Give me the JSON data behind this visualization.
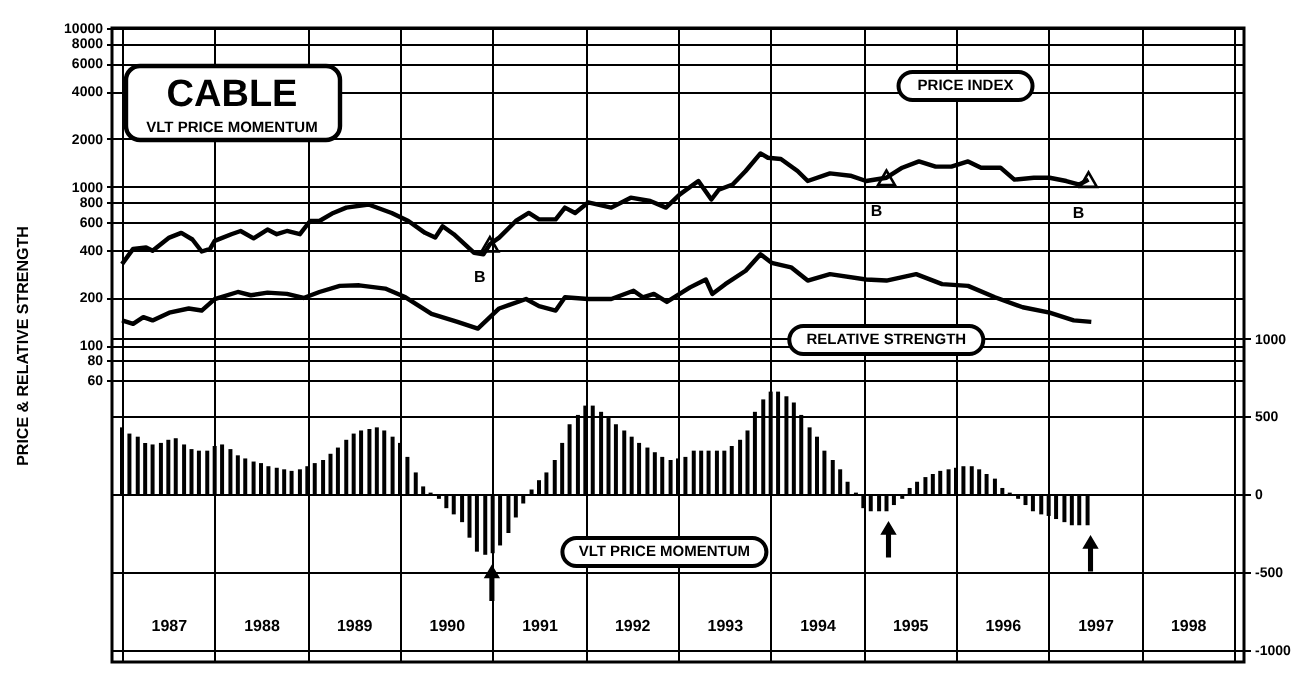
{
  "chart_data": {
    "type": "line",
    "title": "CABLE",
    "subtitle": "VLT PRICE MOMENTUM",
    "ylabel": "PRICE & RELATIVE STRENGTH",
    "xlim": [
      1987,
      1999
    ],
    "xticks": [
      {
        "value": 1987,
        "label": null
      },
      {
        "value": 1987.5,
        "label": "1987"
      },
      {
        "value": 1988,
        "label": null
      },
      {
        "value": 1988.5,
        "label": "1988"
      },
      {
        "value": 1989,
        "label": null
      },
      {
        "value": 1989.5,
        "label": "1989"
      },
      {
        "value": 1990,
        "label": null
      },
      {
        "value": 1990.5,
        "label": "1990"
      },
      {
        "value": 1991,
        "label": null
      },
      {
        "value": 1991.5,
        "label": "1991"
      },
      {
        "value": 1992,
        "label": null
      },
      {
        "value": 1992.5,
        "label": "1992"
      },
      {
        "value": 1993,
        "label": null
      },
      {
        "value": 1993.5,
        "label": "1993"
      },
      {
        "value": 1994,
        "label": null
      },
      {
        "value": 1994.5,
        "label": "1994"
      },
      {
        "value": 1995,
        "label": null
      },
      {
        "value": 1995.5,
        "label": "1995"
      },
      {
        "value": 1996,
        "label": null
      },
      {
        "value": 1996.5,
        "label": "1996"
      },
      {
        "value": 1997,
        "label": null
      },
      {
        "value": 1997.5,
        "label": "1997"
      },
      {
        "value": 1998,
        "label": null
      },
      {
        "value": 1998.5,
        "label": "1998"
      },
      {
        "value": 1999,
        "label": null
      }
    ],
    "ylim": [
      1,
      10000
    ],
    "yticks": [
      60,
      80,
      100,
      200,
      400,
      600,
      800,
      1000,
      2000,
      4000,
      6000,
      8000,
      10000
    ],
    "log": "y",
    "y2lim": [
      -1080,
      3000
    ],
    "y2ticks": [
      -1000,
      -500,
      0,
      500,
      1000
    ],
    "grid": true,
    "legend": false,
    "line_style": "solid",
    "series": [
      {
        "name": "PRICE INDEX",
        "color": "#000000",
        "x": [
          1987,
          1987.12,
          1987.26,
          1987.33,
          1987.51,
          1987.64,
          1987.76,
          1987.86,
          1987.95,
          1988,
          1988.18,
          1988.28,
          1988.42,
          1988.57,
          1988.67,
          1988.78,
          1988.92,
          1989.03,
          1989.13,
          1989.28,
          1989.42,
          1989.66,
          1989.91,
          1990.09,
          1990.27,
          1990.38,
          1990.46,
          1990.58,
          1990.8,
          1990.9,
          1990.97,
          1991.07,
          1991.25,
          1991.39,
          1991.5,
          1991.68,
          1991.78,
          1991.89,
          1992.03,
          1992.28,
          1992.49,
          1992.7,
          1992.87,
          1993.02,
          1993.22,
          1993.36,
          1993.44,
          1993.59,
          1993.73,
          1993.89,
          1993.97,
          1994.11,
          1994.29,
          1994.4,
          1994.64,
          1994.86,
          1995.03,
          1995.25,
          1995.42,
          1995.6,
          1995.78,
          1995.95,
          1996.13,
          1996.27,
          1996.48,
          1996.63,
          1996.84,
          1997.01,
          1997.19,
          1997.33,
          1997.43
        ],
        "values": [
          324,
          404,
          412,
          393,
          476,
          510,
          463,
          389,
          404,
          454,
          500,
          524,
          471,
          535,
          500,
          524,
          500,
          606,
          606,
          681,
          736,
          770,
          681,
          606,
          510,
          476,
          561,
          500,
          381,
          374,
          432,
          476,
          606,
          681,
          620,
          620,
          736,
          681,
          793,
          736,
          850,
          810,
          736,
          892,
          1083,
          828,
          954,
          1029,
          1252,
          1617,
          1519,
          1492,
          1252,
          1083,
          1210,
          1170,
          1083,
          1136,
          1314,
          1440,
          1335,
          1335,
          1440,
          1314,
          1314,
          1105,
          1136,
          1136,
          1083,
          1029,
          1105
        ]
      },
      {
        "name": "RELATIVE STRENGTH",
        "color": "#000000",
        "x": [
          1987,
          1987.12,
          1987.23,
          1987.33,
          1987.51,
          1987.72,
          1987.86,
          1988,
          1988.25,
          1988.39,
          1988.57,
          1988.78,
          1988.96,
          1989.13,
          1989.35,
          1989.56,
          1989.84,
          1990.06,
          1990.34,
          1990.62,
          1990.84,
          1991.07,
          1991.36,
          1991.5,
          1991.68,
          1991.78,
          1992.03,
          1992.28,
          1992.52,
          1992.62,
          1992.74,
          1992.88,
          1993.13,
          1993.3,
          1993.37,
          1993.51,
          1993.73,
          1993.89,
          1994.01,
          1994.22,
          1994.4,
          1994.64,
          1995.03,
          1995.25,
          1995.57,
          1995.85,
          1996.13,
          1996.42,
          1996.72,
          1997.01,
          1997.27,
          1997.46
        ],
        "values": [
          143,
          136,
          150,
          143,
          160,
          170,
          165,
          195,
          216,
          206,
          214,
          210,
          198,
          216,
          236,
          238,
          227,
          200,
          157,
          140,
          127,
          170,
          195,
          176,
          165,
          200,
          195,
          195,
          220,
          200,
          210,
          187,
          231,
          259,
          210,
          242,
          294,
          374,
          330,
          309,
          255,
          280,
          259,
          255,
          280,
          242,
          236,
          200,
          173,
          160,
          143,
          140
        ]
      },
      {
        "name": "VLT PRICE MOMENTUM",
        "type": "bar",
        "axis": "y2",
        "color": "#000000",
        "x": [
          1987,
          1987.08,
          1987.17,
          1987.25,
          1987.33,
          1987.42,
          1987.5,
          1987.58,
          1987.67,
          1987.75,
          1987.83,
          1987.92,
          1988,
          1988.08,
          1988.17,
          1988.25,
          1988.33,
          1988.42,
          1988.5,
          1988.58,
          1988.67,
          1988.75,
          1988.83,
          1988.92,
          1989,
          1989.08,
          1989.17,
          1989.25,
          1989.33,
          1989.42,
          1989.5,
          1989.58,
          1989.67,
          1989.75,
          1989.83,
          1989.92,
          1990,
          1990.08,
          1990.17,
          1990.25,
          1990.33,
          1990.42,
          1990.5,
          1990.58,
          1990.67,
          1990.75,
          1990.83,
          1990.92,
          1991,
          1991.08,
          1991.17,
          1991.25,
          1991.33,
          1991.42,
          1991.5,
          1991.58,
          1991.67,
          1991.75,
          1991.83,
          1991.92,
          1992,
          1992.08,
          1992.17,
          1992.25,
          1992.33,
          1992.42,
          1992.5,
          1992.58,
          1992.67,
          1992.75,
          1992.83,
          1992.92,
          1993,
          1993.08,
          1993.17,
          1993.25,
          1993.33,
          1993.42,
          1993.5,
          1993.58,
          1993.67,
          1993.75,
          1993.83,
          1993.92,
          1994,
          1994.08,
          1994.17,
          1994.25,
          1994.33,
          1994.42,
          1994.5,
          1994.58,
          1994.67,
          1994.75,
          1994.83,
          1994.92,
          1995,
          1995.08,
          1995.17,
          1995.25,
          1995.33,
          1995.42,
          1995.5,
          1995.58,
          1995.67,
          1995.75,
          1995.83,
          1995.92,
          1996,
          1996.08,
          1996.17,
          1996.25,
          1996.33,
          1996.42,
          1996.5,
          1996.58,
          1996.67,
          1996.75,
          1996.83,
          1996.92,
          1997,
          1997.08,
          1997.17,
          1997.25,
          1997.33,
          1997.42
        ],
        "values": [
          430,
          390,
          370,
          330,
          320,
          330,
          350,
          360,
          320,
          290,
          280,
          280,
          310,
          320,
          290,
          250,
          230,
          210,
          200,
          180,
          170,
          160,
          150,
          160,
          180,
          200,
          220,
          260,
          300,
          350,
          390,
          410,
          420,
          430,
          410,
          370,
          330,
          240,
          140,
          50,
          10,
          -30,
          -90,
          -130,
          -180,
          -280,
          -370,
          -390,
          -380,
          -330,
          -250,
          -150,
          -60,
          30,
          90,
          140,
          220,
          330,
          450,
          510,
          570,
          570,
          530,
          490,
          450,
          410,
          370,
          330,
          300,
          270,
          240,
          220,
          230,
          240,
          280,
          280,
          280,
          280,
          280,
          310,
          350,
          410,
          530,
          610,
          660,
          660,
          630,
          590,
          510,
          430,
          370,
          280,
          220,
          160,
          80,
          10,
          -90,
          -110,
          -110,
          -110,
          -70,
          -30,
          40,
          80,
          110,
          130,
          150,
          160,
          170,
          180,
          180,
          160,
          130,
          100,
          40,
          10,
          -30,
          -70,
          -110,
          -130,
          -140,
          -160,
          -180,
          -200,
          -200,
          -200
        ]
      }
    ],
    "annotations": [
      {
        "text": "B",
        "x": 1990.97,
        "y": 432
      },
      {
        "text": "B",
        "x": 1995.25,
        "y": 1136
      },
      {
        "text": "B",
        "x": 1997.43,
        "y": 1105
      }
    ]
  }
}
